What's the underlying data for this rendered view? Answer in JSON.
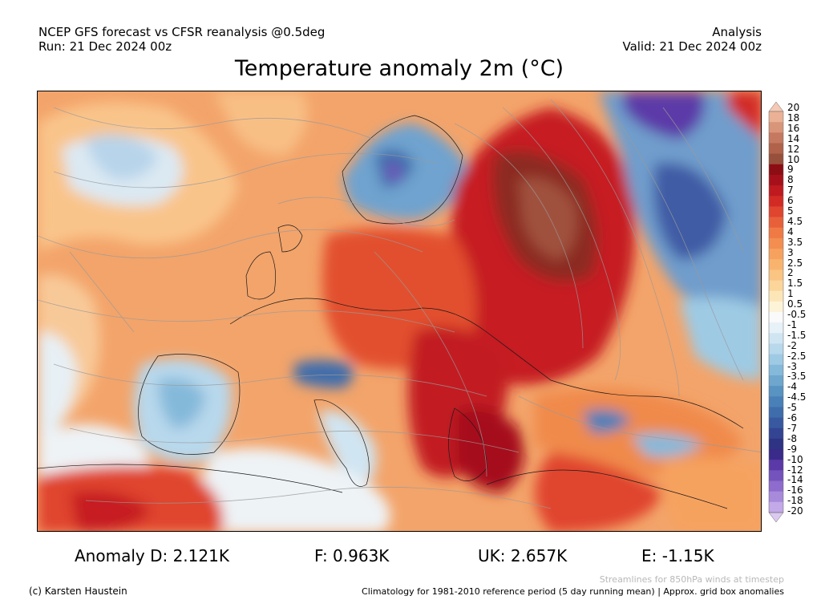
{
  "header": {
    "left_line1": "NCEP GFS forecast vs CFSR reanalysis @0.5deg",
    "left_line2": "Run: 21 Dec 2024 00z",
    "right_line1": "Analysis",
    "right_line2": "Valid: 21 Dec 2024 00z"
  },
  "title": "Temperature anomaly 2m (°C)",
  "colorbar": {
    "labels": [
      "20",
      "18",
      "16",
      "14",
      "12",
      "10",
      "9",
      "8",
      "7",
      "6",
      "5",
      "4.5",
      "4",
      "3.5",
      "3",
      "2.5",
      "2",
      "1.5",
      "1",
      "0.5",
      "-0.5",
      "-1",
      "-1.5",
      "-2",
      "-2.5",
      "-3",
      "-3.5",
      "-4",
      "-4.5",
      "-5",
      "-6",
      "-7",
      "-8",
      "-9",
      "-10",
      "-12",
      "-14",
      "-16",
      "-18",
      "-20"
    ],
    "colors": [
      "#f5c9b4",
      "#eab196",
      "#d9957a",
      "#c57960",
      "#b0624a",
      "#97503b",
      "#8c0d14",
      "#a6101a",
      "#be1a20",
      "#d22b25",
      "#e0452f",
      "#e8603a",
      "#ef7a45",
      "#f38e50",
      "#f6a25e",
      "#f8b46e",
      "#fac482",
      "#fbd59a",
      "#fce6b8",
      "#fdf3d8",
      "#fafafa",
      "#e7f1f8",
      "#d0e5f2",
      "#b8d8ec",
      "#9ecae4",
      "#85b9da",
      "#6ea6ce",
      "#5893c2",
      "#4a80b8",
      "#3f6dac",
      "#3859a0",
      "#334592",
      "#2e3384",
      "#3a2a8a",
      "#5b3aa8",
      "#7453bd",
      "#8e6ccd",
      "#a88adb",
      "#c3a9e8",
      "#dcc9f2"
    ]
  },
  "stats": {
    "D": "Anomaly D: 2.121K",
    "F": "F: 0.963K",
    "UK": "UK: 2.657K",
    "E": "E: -1.15K"
  },
  "footer": {
    "credit": "(c) Karsten Haustein",
    "streamlines": "Streamlines for 850hPa winds at timestep",
    "climatology": "Climatology for 1981-2010 reference period (5 day running mean) | Approx. grid box anomalies"
  }
}
